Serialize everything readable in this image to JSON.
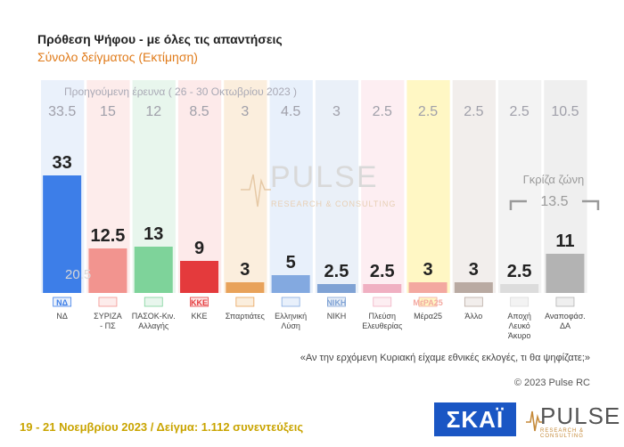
{
  "header": {
    "title": "Πρόθεση Ψήφου - με όλες τις απαντήσεις",
    "subtitle": "Σύνολο δείγματος   (Εκτίμηση)"
  },
  "chart_data": {
    "type": "bar",
    "previous_survey_label": "Προηγούμενη έρευνα  ( 26 - 30 Οκτωβρίου 2023 )",
    "categories": [
      "ΝΔ",
      "ΣΥΡΙΖΑ\n- ΠΣ",
      "ΠΑΣΟΚ-Κιν.\nΑλλαγής",
      "ΚΚΕ",
      "Σπαρτιάτες",
      "Ελληνική\nΛύση",
      "ΝΙΚΗ",
      "Πλεύση\nΕλευθερίας",
      "Μέρα25",
      "Άλλο",
      "Αποχή\nΛευκό\nΆκυρο",
      "Αναποφάσ.\nΔΑ"
    ],
    "series": [
      {
        "values": [
          33,
          12.5,
          13,
          9,
          3,
          5,
          2.5,
          2.5,
          3,
          3,
          2.5,
          11
        ]
      },
      {
        "name": "Προηγούμενη έρευνα  ( 26 - 30 Οκτωβρίου 2023 )",
        "values": [
          33.5,
          15,
          12,
          8.5,
          3,
          4.5,
          3,
          2.5,
          2.5,
          2.5,
          2.5,
          10.5
        ]
      }
    ],
    "value_labels": [
      "33",
      "12.5",
      "13",
      "9",
      "3",
      "5",
      "2.5",
      "2.5",
      "3",
      "3",
      "2.5",
      "11"
    ],
    "previous_labels": [
      "33.5",
      "15",
      "12",
      "8.5",
      "3",
      "4.5",
      "3",
      "2.5",
      "2.5",
      "2.5",
      "2.5",
      "10.5"
    ],
    "colors": [
      "#3d7ee8",
      "#f2948f",
      "#7ed39a",
      "#e43a3c",
      "#e8a25a",
      "#83a9e0",
      "#7fa2d4",
      "#f0b0c2",
      "#f3a8a0",
      "#b9aaa2",
      "#dcdcdc",
      "#b3b3b3"
    ],
    "column_tint": [
      "#eaf1fb",
      "#fdeceb",
      "#e8f6ed",
      "#fdeaea",
      "#fbeedd",
      "#e8f0fb",
      "#eaf0f8",
      "#fdeef2",
      "#fff7c4",
      "#f2eeec",
      "#f3f3f3",
      "#efefef"
    ],
    "gray_zone": {
      "label": "Γκρίζα ζώνη",
      "value": "13.5"
    },
    "nd_inner_label": "20.5",
    "ylim": [
      0,
      35
    ],
    "party_logos": [
      "ΝΔ",
      "",
      "",
      "ΚΚΕ",
      "",
      "",
      "ΝΙΚΗ",
      "",
      "ΜέΡΑ25",
      "",
      "",
      ""
    ],
    "watermark": {
      "name": "PULSE",
      "tagline": "RESEARCH & CONSULTING"
    }
  },
  "footer": {
    "question": "«Αν την ερχόμενη Κυριακή είχαμε εθνικές εκλογές, τι θα ψηφίζατε;»",
    "copyright": "© 2023 Pulse RC",
    "fieldwork": "19 - 21  Νοεμβρίου  2023  /  Δείγμα:  1.112 συνεντεύξεις",
    "skai_logo": "ΣΚΑΪ",
    "pulse_logo": "PULSE",
    "pulse_tagline": "RESEARCH & CONSULTING"
  }
}
